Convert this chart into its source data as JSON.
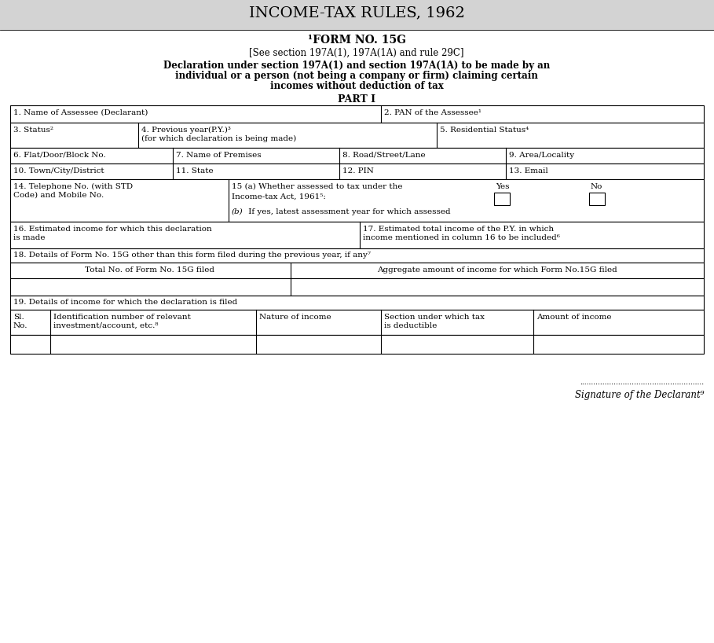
{
  "title": "INCOME-TAX RULES, 1962",
  "form_no_super": "¹FORM NO. 15G",
  "see_section": "[See section 197A(1), 197A(1A) and rule 29C]",
  "decl_line1": "Declaration under section 197A(1) and section 197A(1A) to be made by an",
  "decl_line2": "individual or a person (not being a company or firm) claiming certain",
  "decl_line3": "incomes without deduction of tax",
  "part_i": "PART I",
  "bg_color": "#d3d3d3",
  "white": "#ffffff",
  "black": "#000000",
  "signature_text": "Signature of the Declarant⁹"
}
